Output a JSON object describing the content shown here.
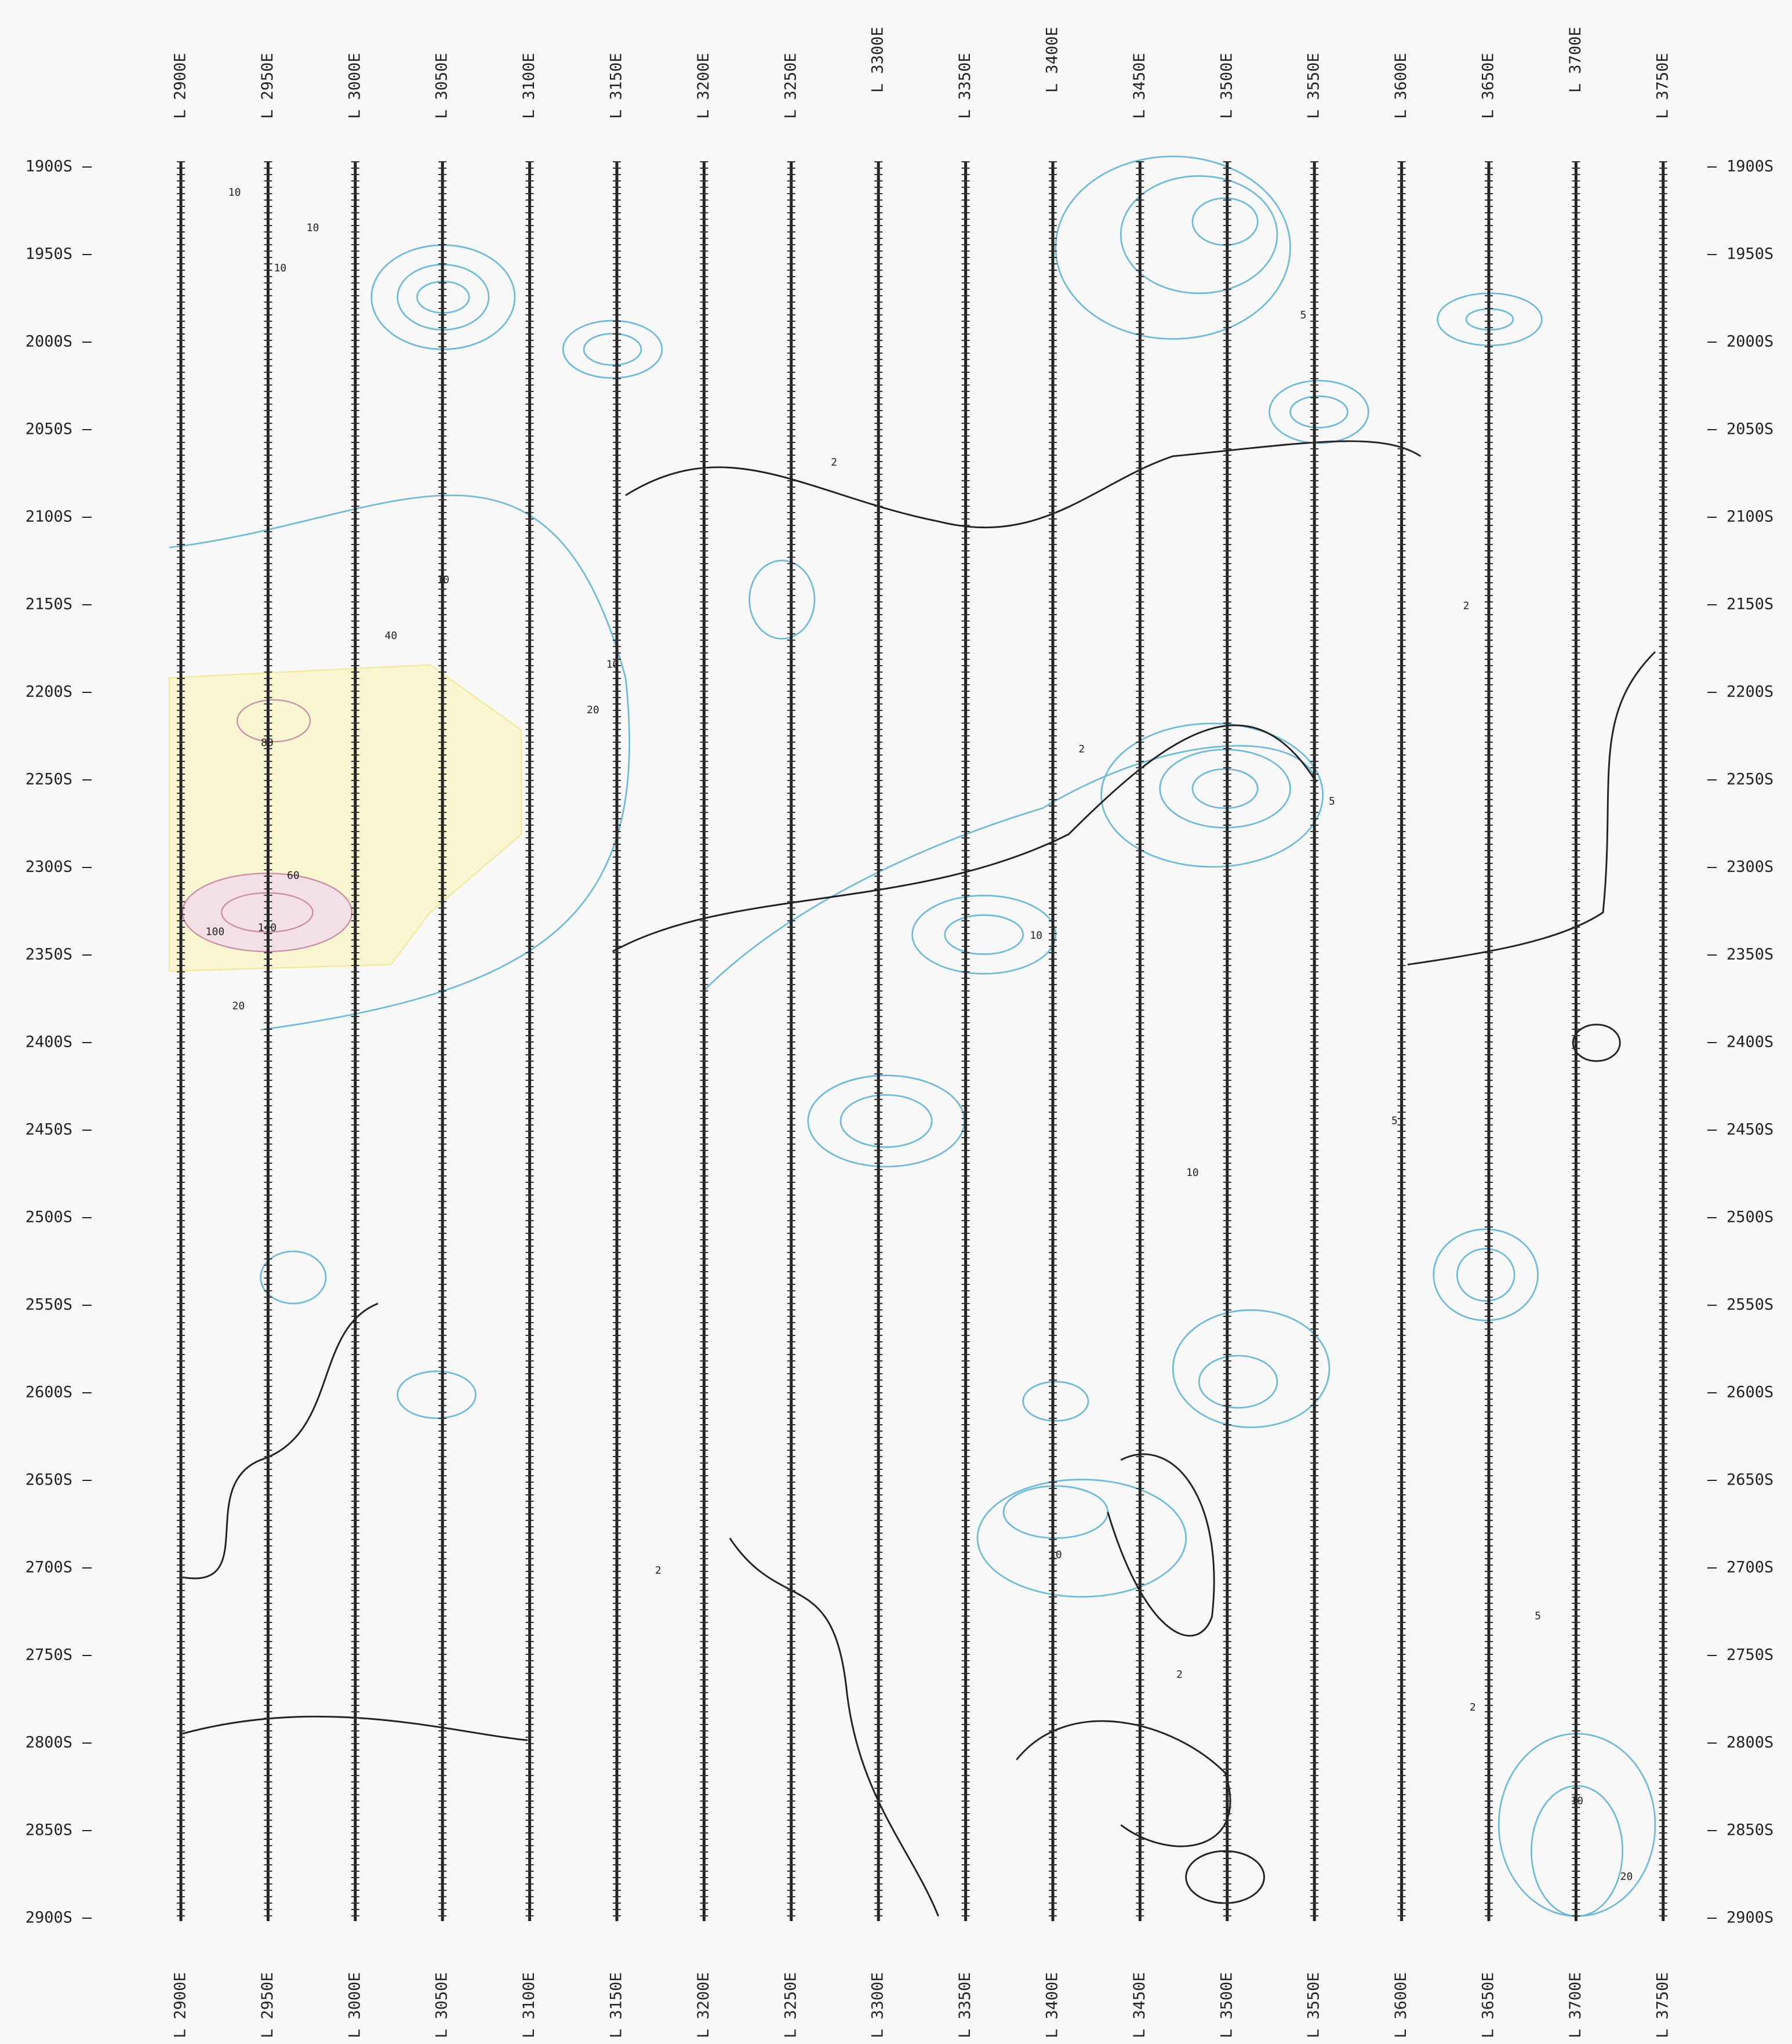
{
  "top_labels": [
    "L 2900E",
    "L 2950E",
    "L 3000E",
    "L 3050E",
    "L 3100E",
    "L 3150E",
    "L 3200E",
    "L 3250E",
    "L 3300E",
    "L 3350E",
    "L 3400E",
    "L 3450E",
    "L 3500E",
    "L 3550E",
    "L 3600E",
    "L 3650E",
    "L 3700E",
    "L 3750E"
  ],
  "bottom_labels": [
    "L 2900E",
    "L 2950E",
    "L 3000E",
    "L 3050E",
    "L 3100E",
    "L 3150E",
    "L 3200E",
    "L 3250E",
    "L 3300E",
    "L 3350E",
    "L 3400E",
    "L 3450E",
    "L 3500E",
    "L 3550E",
    "L 3600E",
    "L 3650E",
    "L 3700E",
    "L 3750E"
  ],
  "left_labels": [
    "1900S",
    "1950S",
    "2000S",
    "2050S",
    "2100S",
    "2150S",
    "2200S",
    "2250S",
    "2300S",
    "2350S",
    "2400S",
    "2450S",
    "2500S",
    "2550S",
    "2600S",
    "2650S",
    "2700S",
    "2750S",
    "2800S",
    "2850S",
    "2900S"
  ],
  "right_labels": [
    "1900S",
    "1950S",
    "2000S",
    "2050S",
    "2100S",
    "2150S",
    "2200S",
    "2250S",
    "2300S",
    "2350S",
    "2400S",
    "2450S",
    "2500S",
    "2550S",
    "2600S",
    "2650S",
    "2700S",
    "2750S",
    "2800S",
    "2850S",
    "2900S"
  ],
  "contour_labels": [
    "10",
    "10",
    "10",
    "80",
    "60",
    "100",
    "140",
    "40",
    "20",
    "10",
    "20",
    "2",
    "5",
    "10",
    "2",
    "10",
    "5",
    "2",
    "10",
    "10",
    "5",
    "2",
    "2",
    "5",
    "10",
    "20",
    "2"
  ]
}
